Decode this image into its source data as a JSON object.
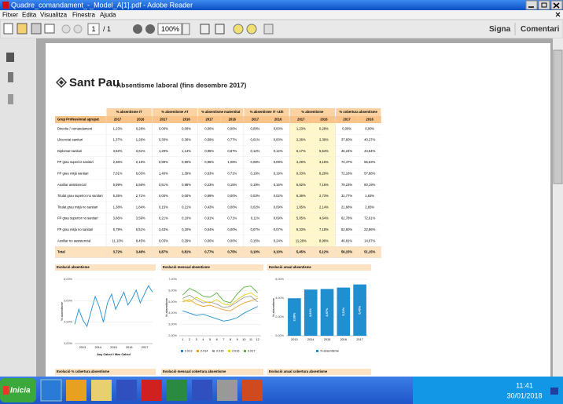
{
  "window": {
    "title": "Quadre_comandament_-_Model_A[1].pdf - Adobe Reader"
  },
  "menu": [
    "Fitxer",
    "Edita",
    "Visualitza",
    "Finestra",
    "Ajuda"
  ],
  "toolbar": {
    "page": "1",
    "page_total": "/ 1",
    "zoom": "100%",
    "sign": "Signa",
    "comment": "Comentari"
  },
  "document": {
    "logo": "Sant Pau",
    "title": "Absentisme laboral (fins desembre 2017)",
    "table": {
      "groups": [
        "% absentisme IT",
        "% absentisme AT",
        "% absentisme maternitat",
        "% absentisme IT <4th",
        "% absentisme",
        "% cobertura absentisme"
      ],
      "first_header": "Grup Professional agrupat",
      "years": [
        "2017",
        "2016"
      ],
      "rows": [
        {
          "label": "Directiu / comandament",
          "values": [
            "1,23%",
            "0,28%",
            "0,00%",
            "0,00%",
            "0,00%",
            "0,00%",
            "0,00%",
            "0,00%",
            "1,23%",
            "0,28%",
            "0,00%",
            "0,00%"
          ]
        },
        {
          "label": "Llicenciat sanitari",
          "values": [
            "1,37%",
            "1,26%",
            "0,30%",
            "0,36%",
            "0,59%",
            "0,77%",
            "0,01%",
            "0,00%",
            "2,26%",
            "2,39%",
            "37,60%",
            "40,27%"
          ]
        },
        {
          "label": "Diplomat sanitari",
          "values": [
            "3,82%",
            "3,61%",
            "1,29%",
            "1,14%",
            "0,95%",
            "0,67%",
            "0,12%",
            "0,12%",
            "6,17%",
            "5,54%",
            "46,24%",
            "44,54%"
          ]
        },
        {
          "label": "FP grau superior sanitari",
          "values": [
            "2,36%",
            "2,15%",
            "0,99%",
            "0,90%",
            "0,96%",
            "1,06%",
            "0,08%",
            "0,09%",
            "4,29%",
            "3,16%",
            "74,47%",
            "55,63%"
          ]
        },
        {
          "label": "FP grau mitjà sanitari",
          "values": [
            "7,01%",
            "6,03%",
            "1,46%",
            "1,39%",
            "0,63%",
            "0,71%",
            "0,19%",
            "0,19%",
            "9,33%",
            "8,29%",
            "72,18%",
            "57,88%"
          ]
        },
        {
          "label": "Auxiliar assistencial",
          "values": [
            "5,99%",
            "5,56%",
            "0,51%",
            "0,98%",
            "0,23%",
            "0,15%",
            "0,19%",
            "0,16%",
            "6,82%",
            "7,16%",
            "79,23%",
            "80,19%"
          ]
        },
        {
          "label": "Titulat grau superior no sanitari",
          "values": [
            "5,35%",
            "2,71%",
            "0,00%",
            "0,00%",
            "0,99%",
            "0,00%",
            "0,03%",
            "0,02%",
            "6,36%",
            "2,73%",
            "31,77%",
            "1,63%"
          ]
        },
        {
          "label": "Titulat grau mitjà no sanitari",
          "values": [
            "1,38%",
            "1,84%",
            "0,15%",
            "0,21%",
            "0,43%",
            "0,00%",
            "0,02%",
            "0,09%",
            "1,95%",
            "2,14%",
            "21,68%",
            "2,65%"
          ]
        },
        {
          "label": "FP grau superior no sanitari",
          "values": [
            "3,86%",
            "3,59%",
            "0,21%",
            "0,10%",
            "0,91%",
            "0,71%",
            "0,11%",
            "0,09%",
            "5,05%",
            "4,64%",
            "62,78%",
            "72,61%"
          ]
        },
        {
          "label": "FP grau mitjà no sanitari",
          "values": [
            "5,79%",
            "6,51%",
            "2,43%",
            "0,20%",
            "0,04%",
            "0,00%",
            "0,07%",
            "0,07%",
            "8,33%",
            "7,18%",
            "52,60%",
            "22,86%"
          ]
        },
        {
          "label": "Auxiliar no assistencial",
          "values": [
            "11,10%",
            "8,45%",
            "0,03%",
            "0,29%",
            "0,00%",
            "0,00%",
            "0,15%",
            "0,24%",
            "11,28%",
            "8,98%",
            "46,81%",
            "14,07%"
          ]
        },
        {
          "label": "Total",
          "values": [
            "3,72%",
            "3,46%",
            "0,87%",
            "0,81%",
            "0,77%",
            "0,75%",
            "0,10%",
            "0,10%",
            "5,45%",
            "5,12%",
            "56,15%",
            "51,15%"
          ]
        }
      ]
    },
    "charts": [
      {
        "type": "line",
        "title": "Evolució absentisme",
        "y_label": "% absentisme",
        "x_label": "Any Calcul / Mes Calcul",
        "x_labels": [
          "2013",
          "2014",
          "2015",
          "2016",
          "2017"
        ],
        "ylim": [
          3,
          6
        ],
        "yticks": [
          {
            "value": 3,
            "label": "3,00%"
          },
          {
            "value": 4,
            "label": "4,00%"
          },
          {
            "value": 5,
            "label": "5,00%"
          },
          {
            "value": 6,
            "label": "6,00%"
          }
        ],
        "series": [
          {
            "color": "#1f8fd0",
            "values": [
              3.9,
              4.6,
              4.1,
              3.8,
              4.5,
              5.2,
              4.7,
              4.0,
              4.9,
              5.3,
              4.6,
              5.0,
              5.4,
              4.8,
              5.1,
              5.5,
              4.9,
              5.3,
              5.7,
              5.4
            ]
          }
        ]
      },
      {
        "type": "line",
        "title": "Evolució mensual absentisme",
        "y_label": "% absentisme",
        "categories": [
          "1",
          "2",
          "3",
          "4",
          "5",
          "6",
          "7",
          "8",
          "9",
          "10",
          "11",
          "12"
        ],
        "ylim": [
          2,
          7
        ],
        "yticks": [
          {
            "value": 2,
            "label": "2,00%"
          },
          {
            "value": 3,
            "label": "3,00%"
          },
          {
            "value": 4,
            "label": "4,00%"
          },
          {
            "value": 5,
            "label": "5,00%"
          },
          {
            "value": 6,
            "label": "6,00%"
          },
          {
            "value": 7,
            "label": "7,00%"
          }
        ],
        "series": [
          {
            "name": "2.013",
            "color": "#1f8fd0",
            "values": [
              4.2,
              4.0,
              3.8,
              3.9,
              3.7,
              3.5,
              3.3,
              3.4,
              3.6,
              4.0,
              4.3,
              4.6
            ]
          },
          {
            "name": "2.014",
            "color": "#f0a030",
            "values": [
              5.0,
              5.2,
              4.8,
              4.6,
              4.7,
              4.5,
              4.3,
              4.2,
              4.6,
              4.9,
              5.1,
              5.3
            ]
          },
          {
            "name": "2.015",
            "color": "#a0a0a0",
            "values": [
              5.3,
              5.6,
              5.2,
              4.9,
              5.0,
              4.8,
              4.5,
              4.6,
              5.0,
              5.4,
              5.5,
              5.0
            ]
          },
          {
            "name": "2.016",
            "color": "#e8d020",
            "values": [
              5.2,
              5.0,
              5.4,
              5.1,
              4.9,
              5.2,
              4.8,
              4.7,
              5.2,
              5.6,
              5.8,
              5.4
            ]
          },
          {
            "name": "2.017",
            "color": "#5cb040",
            "values": [
              5.6,
              6.2,
              5.9,
              5.5,
              5.4,
              5.8,
              5.1,
              4.9,
              5.7,
              6.3,
              6.4,
              5.8
            ]
          }
        ]
      },
      {
        "type": "bar",
        "title": "Evolució anual absentisme",
        "y_label": "% absentisme",
        "categories": [
          "2013",
          "2014",
          "2015",
          "2016",
          "2017"
        ],
        "ylim": [
          0,
          6
        ],
        "yticks": [
          {
            "value": 0,
            "label": "0,00%"
          },
          {
            "value": 2,
            "label": "2,00%"
          },
          {
            "value": 4,
            "label": "4,00%"
          },
          {
            "value": 6,
            "label": "6,00%"
          }
        ],
        "series": [
          {
            "name": "% absentisme",
            "color": "#1f8fd0",
            "values": [
              3.98,
              4.91,
              4.97,
              5.12,
              5.45
            ],
            "value_labels": [
              "3,98%",
              "4,91%",
              "4,97%",
              "5,12%",
              "5,45%"
            ]
          }
        ]
      }
    ],
    "next_titles": [
      "Evolució % cobertura absentisme",
      "Evolució mensual cobertura absentisme",
      "Evolució anual cobertura absentisme"
    ]
  },
  "taskbar": {
    "start": "Inicia",
    "time": "11:41",
    "date": "30/01/2018"
  }
}
